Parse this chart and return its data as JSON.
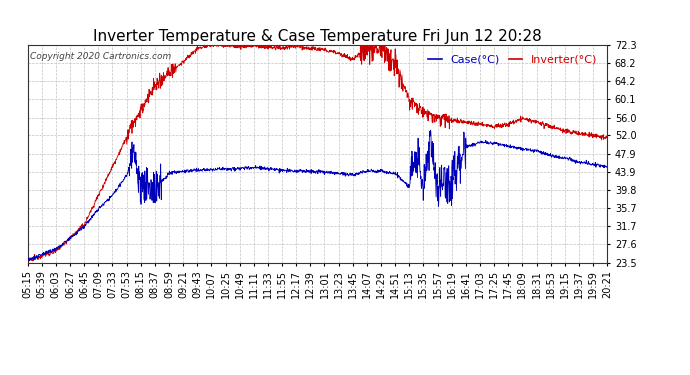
{
  "title": "Inverter Temperature & Case Temperature Fri Jun 12 20:28",
  "copyright": "Copyright 2020 Cartronics.com",
  "legend_case": "Case(°C)",
  "legend_inverter": "Inverter(°C)",
  "y_ticks": [
    23.5,
    27.6,
    31.7,
    35.7,
    39.8,
    43.9,
    47.9,
    52.0,
    56.0,
    60.1,
    64.2,
    68.2,
    72.3
  ],
  "ylim": [
    23.5,
    72.3
  ],
  "color_case": "#0000bb",
  "color_inverter": "#cc0000",
  "background_color": "#ffffff",
  "grid_color": "#bbbbbb",
  "title_fontsize": 11,
  "legend_fontsize": 8,
  "tick_fontsize": 7,
  "x_tick_labels": [
    "05:15",
    "05:39",
    "06:03",
    "06:27",
    "06:45",
    "07:09",
    "07:33",
    "07:53",
    "08:15",
    "08:37",
    "08:59",
    "09:21",
    "09:43",
    "10:07",
    "10:25",
    "10:49",
    "11:11",
    "11:33",
    "11:55",
    "12:17",
    "12:39",
    "13:01",
    "13:23",
    "13:45",
    "14:07",
    "14:29",
    "14:51",
    "15:13",
    "15:35",
    "15:57",
    "16:19",
    "16:41",
    "17:03",
    "17:25",
    "17:45",
    "18:09",
    "18:31",
    "18:53",
    "19:15",
    "19:37",
    "19:59",
    "20:21"
  ],
  "n_xticks": 42
}
